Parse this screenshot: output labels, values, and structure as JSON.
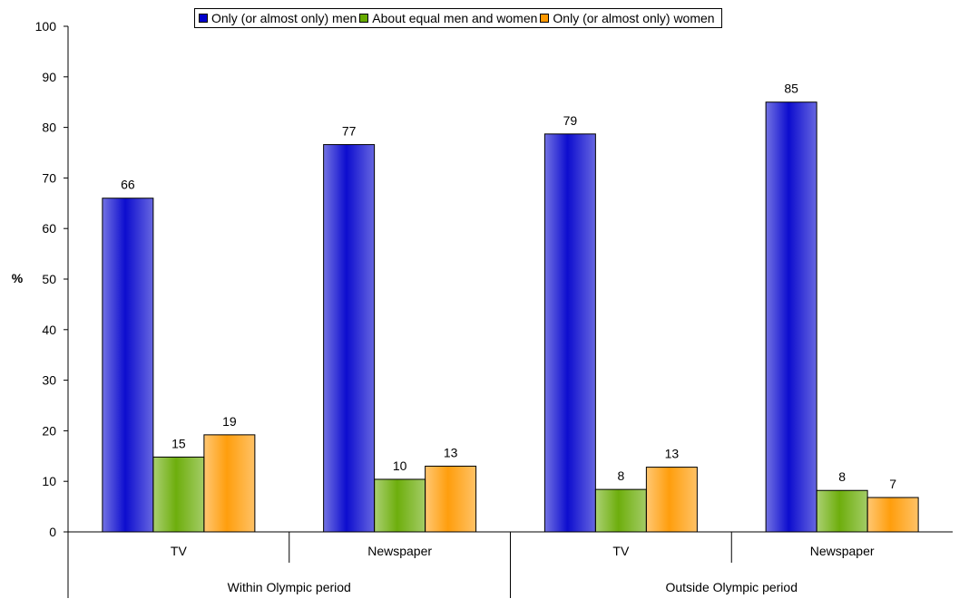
{
  "chart_data": {
    "type": "bar",
    "groups": [
      {
        "label": "Within Olympic period",
        "categories": [
          "TV",
          "Newspaper"
        ]
      },
      {
        "label": "Outside Olympic period",
        "categories": [
          "TV",
          "Newspaper"
        ]
      }
    ],
    "categories": [
      "TV",
      "Newspaper",
      "TV",
      "Newspaper"
    ],
    "series": [
      {
        "name": "Only (or almost only) men",
        "color": "#0000CC",
        "values": [
          66,
          76.6,
          78.7,
          85
        ],
        "labels": [
          "66",
          "77",
          "79",
          "85"
        ]
      },
      {
        "name": "About equal men and women",
        "color": "#66AA00",
        "values": [
          14.8,
          10.4,
          8.4,
          8.2
        ],
        "labels": [
          "15",
          "10",
          "8",
          "8"
        ]
      },
      {
        "name": "Only (or almost only) women",
        "color": "#FF9900",
        "values": [
          19.2,
          13,
          12.8,
          6.8
        ],
        "labels": [
          "19",
          "13",
          "13",
          "7"
        ]
      }
    ],
    "ylabel": "%",
    "ylim": [
      0,
      100
    ],
    "yticks": [
      0,
      10,
      20,
      30,
      40,
      50,
      60,
      70,
      80,
      90,
      100
    ],
    "grid": false,
    "legend_position": "top"
  }
}
